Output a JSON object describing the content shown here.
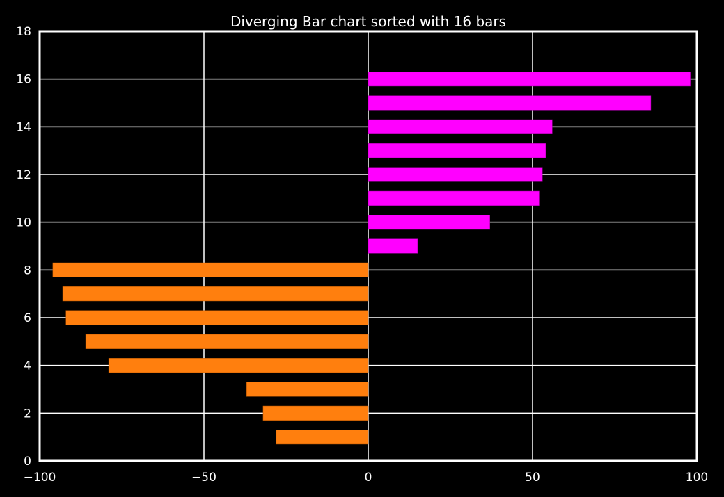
{
  "chart_data": {
    "type": "bar",
    "orientation": "horizontal",
    "title": "Diverging Bar chart sorted with 16 bars",
    "xlabel": "",
    "ylabel": "",
    "xlim": [
      -100,
      100
    ],
    "ylim": [
      0,
      18
    ],
    "x_ticks": [
      -100,
      -50,
      0,
      50,
      100
    ],
    "x_tick_labels": [
      "−100",
      "−50",
      "0",
      "50",
      "100"
    ],
    "y_ticks": [
      0,
      2,
      4,
      6,
      8,
      10,
      12,
      14,
      16,
      18
    ],
    "y_tick_labels": [
      "0",
      "2",
      "4",
      "6",
      "8",
      "10",
      "12",
      "14",
      "16",
      "18"
    ],
    "grid": true,
    "legend": "none",
    "bar_height": 0.6,
    "positions": [
      1,
      2,
      3,
      4,
      5,
      6,
      7,
      8,
      9,
      10,
      11,
      12,
      13,
      14,
      15,
      16
    ],
    "values": [
      -28,
      -32,
      -37,
      -79,
      -86,
      -92,
      -93,
      -96,
      15,
      37,
      52,
      53,
      54,
      56,
      86,
      98
    ],
    "colors": {
      "negative": "#ff7f0e",
      "positive": "#ff00ff",
      "background": "#000000",
      "foreground": "#ffffff"
    }
  }
}
